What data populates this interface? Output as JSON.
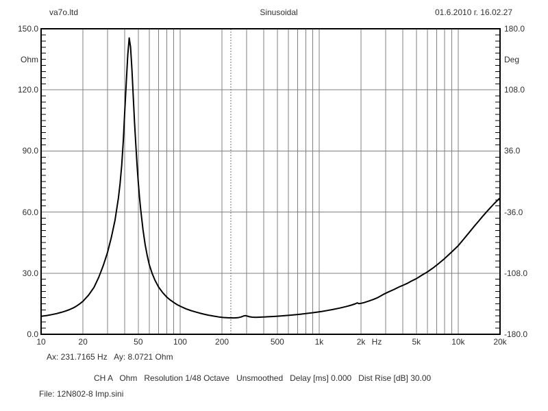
{
  "header": {
    "left_title": "va7o.ltd",
    "center_title": "Sinusoidal",
    "datetime": "01.6.2010 г. 16.02.27"
  },
  "footer": {
    "cursor_readout": "Ax: 231.7165 Hz   Ay: 8.0721 Ohm",
    "settings": "CH A   Ohm   Resolution 1/48 Octave   Unsmoothed   Delay [ms] 0.000   Dist Rise [dB] 30.00",
    "file": "File: 12N802-8 Imp.sini"
  },
  "chart_data": {
    "type": "line",
    "title": "Sinusoidal",
    "grid": true,
    "x_axis": {
      "label": "Hz",
      "scale": "log",
      "min": 10,
      "max": 20000,
      "tick_labels": [
        "10",
        "20",
        "50",
        "100",
        "200",
        "500",
        "1k",
        "2k",
        "5k",
        "10k",
        "20k"
      ],
      "tick_values": [
        10,
        20,
        50,
        100,
        200,
        500,
        1000,
        2000,
        5000,
        10000,
        20000
      ]
    },
    "y_left": {
      "label": "Ohm",
      "min": 0,
      "max": 150,
      "tick_labels": [
        "150.0",
        "120.0",
        "90.0",
        "60.0",
        "30.0",
        "0.0"
      ],
      "tick_values": [
        150,
        120,
        90,
        60,
        30,
        0
      ],
      "minor_tick_step": 3
    },
    "y_right": {
      "label": "Deg",
      "min": -180,
      "max": 180,
      "tick_labels": [
        "180.0",
        "108.0",
        "36.0",
        "-36.0",
        "-108.0",
        "-180.0"
      ],
      "tick_values": [
        180,
        108,
        36,
        -36,
        -108,
        -180
      ]
    },
    "cursor": {
      "x_hz": 231.7165,
      "y_ohm": 8.0721
    },
    "series": [
      {
        "name": "impedance-magnitude",
        "unit": "Ohm",
        "points": [
          [
            10,
            8.8
          ],
          [
            11,
            9.2
          ],
          [
            12,
            9.7
          ],
          [
            13,
            10.2
          ],
          [
            14,
            10.8
          ],
          [
            15,
            11.4
          ],
          [
            16,
            12.1
          ],
          [
            17,
            12.9
          ],
          [
            18,
            13.9
          ],
          [
            19,
            15.0
          ],
          [
            20,
            16.2
          ],
          [
            22,
            19.3
          ],
          [
            24,
            23.0
          ],
          [
            26,
            28.0
          ],
          [
            28,
            33.8
          ],
          [
            30,
            40.0
          ],
          [
            32,
            47.5
          ],
          [
            34,
            56.0
          ],
          [
            36,
            67.0
          ],
          [
            37,
            74.0
          ],
          [
            38,
            83.0
          ],
          [
            39,
            95.0
          ],
          [
            40,
            110.0
          ],
          [
            41,
            124.0
          ],
          [
            42,
            137.0
          ],
          [
            43,
            145.5
          ],
          [
            44,
            141.0
          ],
          [
            45,
            130.0
          ],
          [
            46,
            117.0
          ],
          [
            47,
            104.0
          ],
          [
            48,
            93.0
          ],
          [
            49,
            83.0
          ],
          [
            50,
            74.5
          ],
          [
            51,
            67.5
          ],
          [
            52,
            61.5
          ],
          [
            54,
            51.5
          ],
          [
            56,
            44.0
          ],
          [
            58,
            38.5
          ],
          [
            60,
            34.2
          ],
          [
            63,
            29.8
          ],
          [
            66,
            26.5
          ],
          [
            70,
            23.2
          ],
          [
            75,
            20.4
          ],
          [
            80,
            18.3
          ],
          [
            85,
            16.8
          ],
          [
            90,
            15.6
          ],
          [
            95,
            14.6
          ],
          [
            100,
            13.8
          ],
          [
            110,
            12.5
          ],
          [
            120,
            11.6
          ],
          [
            130,
            10.9
          ],
          [
            140,
            10.3
          ],
          [
            150,
            9.8
          ],
          [
            160,
            9.4
          ],
          [
            175,
            8.9
          ],
          [
            190,
            8.5
          ],
          [
            205,
            8.25
          ],
          [
            220,
            8.1
          ],
          [
            231.7,
            8.07
          ],
          [
            245,
            8.05
          ],
          [
            260,
            8.15
          ],
          [
            275,
            8.5
          ],
          [
            288,
            9.05
          ],
          [
            295,
            9.15
          ],
          [
            305,
            8.9
          ],
          [
            315,
            8.6
          ],
          [
            330,
            8.4
          ],
          [
            350,
            8.35
          ],
          [
            375,
            8.4
          ],
          [
            400,
            8.5
          ],
          [
            430,
            8.6
          ],
          [
            470,
            8.75
          ],
          [
            510,
            8.9
          ],
          [
            560,
            9.1
          ],
          [
            610,
            9.35
          ],
          [
            670,
            9.6
          ],
          [
            730,
            9.85
          ],
          [
            800,
            10.15
          ],
          [
            880,
            10.5
          ],
          [
            960,
            10.85
          ],
          [
            1050,
            11.25
          ],
          [
            1150,
            11.7
          ],
          [
            1250,
            12.15
          ],
          [
            1400,
            12.85
          ],
          [
            1550,
            13.55
          ],
          [
            1700,
            14.3
          ],
          [
            1820,
            14.95
          ],
          [
            1880,
            15.45
          ],
          [
            1930,
            15.05
          ],
          [
            2000,
            15.2
          ],
          [
            2100,
            15.55
          ],
          [
            2250,
            16.2
          ],
          [
            2450,
            17.1
          ],
          [
            2650,
            18.05
          ],
          [
            2900,
            19.6
          ],
          [
            3150,
            20.8
          ],
          [
            3450,
            22.0
          ],
          [
            3750,
            23.2
          ],
          [
            4000,
            24.0
          ],
          [
            4300,
            25.0
          ],
          [
            4600,
            26.1
          ],
          [
            5000,
            27.3
          ],
          [
            5500,
            29.1
          ],
          [
            6000,
            30.6
          ],
          [
            6600,
            32.6
          ],
          [
            7200,
            34.6
          ],
          [
            7900,
            36.9
          ],
          [
            8600,
            39.2
          ],
          [
            9300,
            41.4
          ],
          [
            10000,
            43.5
          ],
          [
            11000,
            46.9
          ],
          [
            12000,
            50.0
          ],
          [
            13000,
            52.9
          ],
          [
            14000,
            55.5
          ],
          [
            15000,
            57.9
          ],
          [
            16000,
            60.1
          ],
          [
            17000,
            62.1
          ],
          [
            18000,
            63.9
          ],
          [
            19000,
            65.5
          ],
          [
            20000,
            67.0
          ]
        ]
      }
    ]
  }
}
